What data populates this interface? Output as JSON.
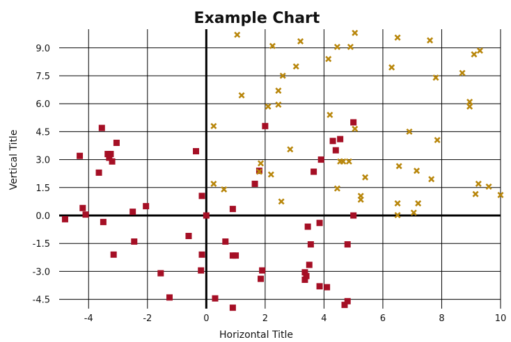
{
  "chart_data": {
    "type": "scatter",
    "title": "Example Chart",
    "xlabel": "Horizontal Title",
    "ylabel": "Vertical Title",
    "xlim": [
      -5,
      10
    ],
    "ylim": [
      -5,
      10
    ],
    "x_ticks": [
      -4,
      -2,
      0,
      2,
      4,
      6,
      8,
      10
    ],
    "y_ticks": [
      -4.5,
      -3.0,
      -1.5,
      0.0,
      1.5,
      3.0,
      4.5,
      6.0,
      7.5,
      9.0
    ],
    "x_tick_labels": [
      "-4",
      "-2",
      "0",
      "2",
      "4",
      "6",
      "8",
      "10"
    ],
    "y_tick_labels": [
      "-4.5",
      "-3.0",
      "-1.5",
      "0.0",
      "1.5",
      "3.0",
      "4.5",
      "6.0",
      "7.5",
      "9.0"
    ],
    "grid": true,
    "legend": "none",
    "series": [
      {
        "marker": "square",
        "color": "#a50f25",
        "points": [
          [
            -4.8,
            -0.2
          ],
          [
            -4.3,
            3.2
          ],
          [
            -4.2,
            0.4
          ],
          [
            -4.1,
            0.05
          ],
          [
            -3.65,
            2.3
          ],
          [
            -3.55,
            4.7
          ],
          [
            -3.5,
            -0.35
          ],
          [
            -3.35,
            3.3
          ],
          [
            -3.3,
            3.1
          ],
          [
            -3.25,
            3.3
          ],
          [
            -3.2,
            2.9
          ],
          [
            -3.15,
            -2.1
          ],
          [
            -3.05,
            3.9
          ],
          [
            -2.5,
            0.2
          ],
          [
            -2.45,
            -1.4
          ],
          [
            -2.05,
            0.5
          ],
          [
            -1.55,
            -3.1
          ],
          [
            -1.25,
            -4.4
          ],
          [
            -0.6,
            -1.1
          ],
          [
            -0.35,
            3.45
          ],
          [
            -0.15,
            1.05
          ],
          [
            -0.15,
            -2.1
          ],
          [
            -0.18,
            -2.95
          ],
          [
            0.0,
            0.0
          ],
          [
            0.3,
            -4.45
          ],
          [
            0.65,
            -1.4
          ],
          [
            0.9,
            0.35
          ],
          [
            0.9,
            -2.15
          ],
          [
            1.0,
            -2.15
          ],
          [
            0.9,
            -4.95
          ],
          [
            1.65,
            1.7
          ],
          [
            1.8,
            2.4
          ],
          [
            1.85,
            -3.4
          ],
          [
            1.9,
            -2.95
          ],
          [
            2.0,
            4.8
          ],
          [
            3.35,
            -3.05
          ],
          [
            3.35,
            -3.45
          ],
          [
            3.4,
            -3.25
          ],
          [
            3.45,
            -0.6
          ],
          [
            3.5,
            -2.65
          ],
          [
            3.55,
            -1.55
          ],
          [
            3.65,
            2.35
          ],
          [
            3.85,
            -0.4
          ],
          [
            3.85,
            -3.8
          ],
          [
            3.9,
            3.0
          ],
          [
            4.1,
            -3.85
          ],
          [
            4.3,
            4.0
          ],
          [
            4.4,
            3.5
          ],
          [
            4.55,
            4.1
          ],
          [
            4.7,
            -4.8
          ],
          [
            4.8,
            -1.55
          ],
          [
            4.8,
            -4.6
          ],
          [
            5.0,
            5.0
          ],
          [
            5.0,
            0.0
          ]
        ]
      },
      {
        "marker": "x",
        "color": "#b8860b",
        "points": [
          [
            1.05,
            9.7
          ],
          [
            2.25,
            9.1
          ],
          [
            3.2,
            9.35
          ],
          [
            4.45,
            9.05
          ],
          [
            4.9,
            9.05
          ],
          [
            5.05,
            9.8
          ],
          [
            6.5,
            9.55
          ],
          [
            7.6,
            9.4
          ],
          [
            9.1,
            8.65
          ],
          [
            9.3,
            8.85
          ],
          [
            4.15,
            8.4
          ],
          [
            3.05,
            8.0
          ],
          [
            6.3,
            7.95
          ],
          [
            8.7,
            7.65
          ],
          [
            2.6,
            7.5
          ],
          [
            7.8,
            7.4
          ],
          [
            2.45,
            6.7
          ],
          [
            1.2,
            6.45
          ],
          [
            8.95,
            6.1
          ],
          [
            8.95,
            5.85
          ],
          [
            2.45,
            5.95
          ],
          [
            2.1,
            5.85
          ],
          [
            4.2,
            5.4
          ],
          [
            0.25,
            4.8
          ],
          [
            5.05,
            4.65
          ],
          [
            6.9,
            4.5
          ],
          [
            7.85,
            4.05
          ],
          [
            2.85,
            3.55
          ],
          [
            1.85,
            2.8
          ],
          [
            4.55,
            2.9
          ],
          [
            4.65,
            2.9
          ],
          [
            4.85,
            2.9
          ],
          [
            1.8,
            2.35
          ],
          [
            2.2,
            2.2
          ],
          [
            6.55,
            2.65
          ],
          [
            7.15,
            2.4
          ],
          [
            5.4,
            2.05
          ],
          [
            7.65,
            1.95
          ],
          [
            0.25,
            1.7
          ],
          [
            0.6,
            1.4
          ],
          [
            4.45,
            1.45
          ],
          [
            9.25,
            1.7
          ],
          [
            9.6,
            1.55
          ],
          [
            5.25,
            1.05
          ],
          [
            9.15,
            1.15
          ],
          [
            10.0,
            1.1
          ],
          [
            5.25,
            0.85
          ],
          [
            2.55,
            0.75
          ],
          [
            6.5,
            0.65
          ],
          [
            7.2,
            0.65
          ],
          [
            7.05,
            0.15
          ],
          [
            6.5,
            0.02
          ]
        ]
      }
    ]
  }
}
